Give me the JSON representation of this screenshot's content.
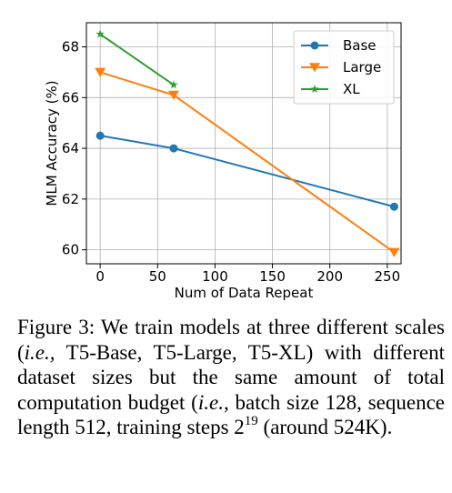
{
  "chart_data": {
    "type": "line",
    "xlabel": "Num of Data Repeat",
    "ylabel": "MLM Accuracy (%)",
    "xlim": [
      -12,
      262
    ],
    "ylim": [
      59.45,
      68.95
    ],
    "xticks": [
      0,
      50,
      100,
      150,
      200,
      250
    ],
    "yticks": [
      60,
      62,
      64,
      66,
      68
    ],
    "grid": true,
    "legend_position": "top-right",
    "series": [
      {
        "name": "Base",
        "color": "#1f77b4",
        "marker": "circle",
        "x": [
          0,
          64,
          256
        ],
        "y": [
          64.5,
          64.0,
          61.7
        ]
      },
      {
        "name": "Large",
        "color": "#ff7f0e",
        "marker": "triangle-down",
        "x": [
          0,
          64,
          256
        ],
        "y": [
          67.0,
          66.1,
          59.9
        ]
      },
      {
        "name": "XL",
        "color": "#2ca02c",
        "marker": "star",
        "x": [
          0,
          64
        ],
        "y": [
          68.5,
          66.5
        ]
      }
    ]
  },
  "caption": {
    "label": "Figure 3:",
    "part1": " We train models at three different scales (",
    "ie1": "i.e.,",
    "part2": " T5-Base, T5-Large, T5-XL) with different dataset sizes but the same amount of total computation budget (",
    "ie2": "i.e.,",
    "part3": " batch size 128, sequence length 512, training steps 2",
    "exponent": "19",
    "part4": " (around 524K)."
  }
}
